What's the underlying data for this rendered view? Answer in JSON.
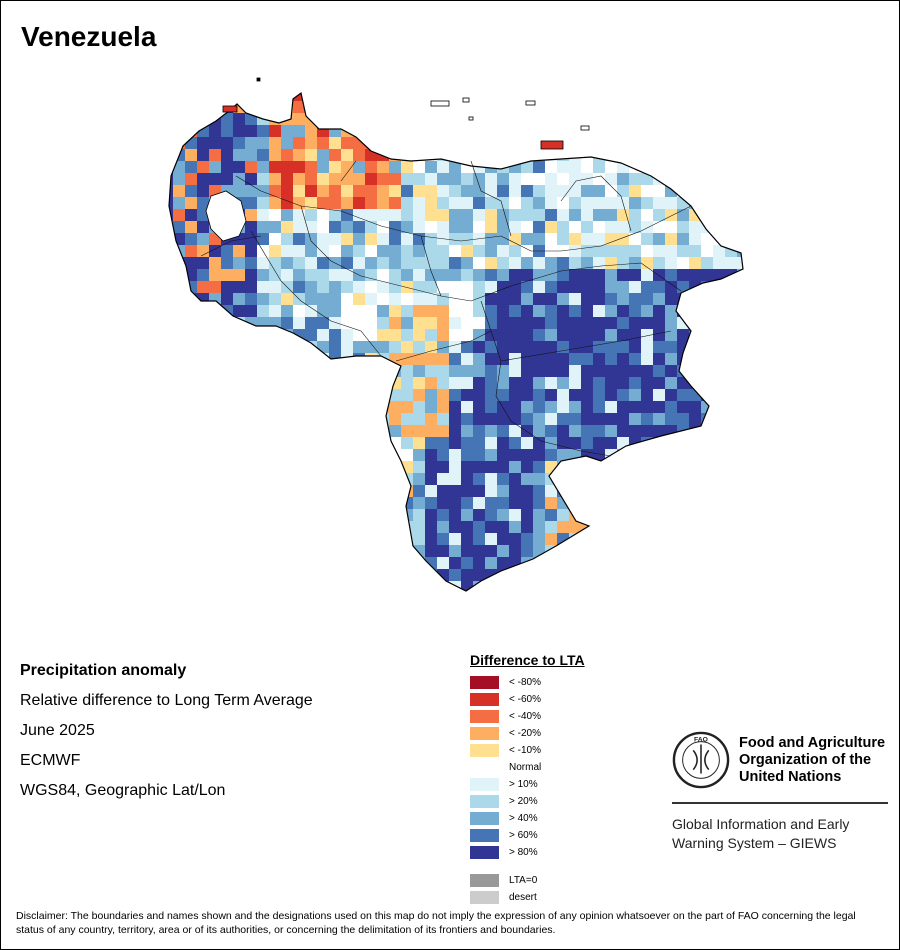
{
  "title": "Venezuela",
  "map_meta": {
    "line1": "Precipitation anomaly",
    "line2": "Relative difference to Long Term Average",
    "line3": "June 2025",
    "line4": "ECMWF",
    "line5": "WGS84, Geographic Lat/Lon"
  },
  "legend": {
    "title": "Difference to LTA",
    "items": [
      {
        "label": "< -80%",
        "color": "#a50f26"
      },
      {
        "label": "< -60%",
        "color": "#d73027"
      },
      {
        "label": "< -40%",
        "color": "#f46d43"
      },
      {
        "label": "< -20%",
        "color": "#fdae61"
      },
      {
        "label": "< -10%",
        "color": "#fee090"
      },
      {
        "label": "Normal",
        "color": "#ffffff"
      },
      {
        "label": "> 10%",
        "color": "#e0f3f8"
      },
      {
        "label": "> 20%",
        "color": "#abd9e9"
      },
      {
        "label": "> 40%",
        "color": "#74add1"
      },
      {
        "label": "> 60%",
        "color": "#4575b4"
      },
      {
        "label": "> 80%",
        "color": "#313695"
      }
    ],
    "extra": [
      {
        "label": "LTA=0",
        "color": "#999999"
      },
      {
        "label": "desert",
        "color": "#cccccc"
      }
    ]
  },
  "fao": {
    "seal_text": "FAO",
    "name": "Food and Agriculture\nOrganization of the\nUnited Nations",
    "giews": "Global Information and Early\nWarning System – GIEWS"
  },
  "disclaimer": "Disclaimer: The boundaries and names shown and the designations used on this map do not imply the expression of any opinion whatsoever on the part of FAO concerning the legal status of any country, territory, area or of its authorities, or concerning the delimitation of its frontiers and boundaries."
}
